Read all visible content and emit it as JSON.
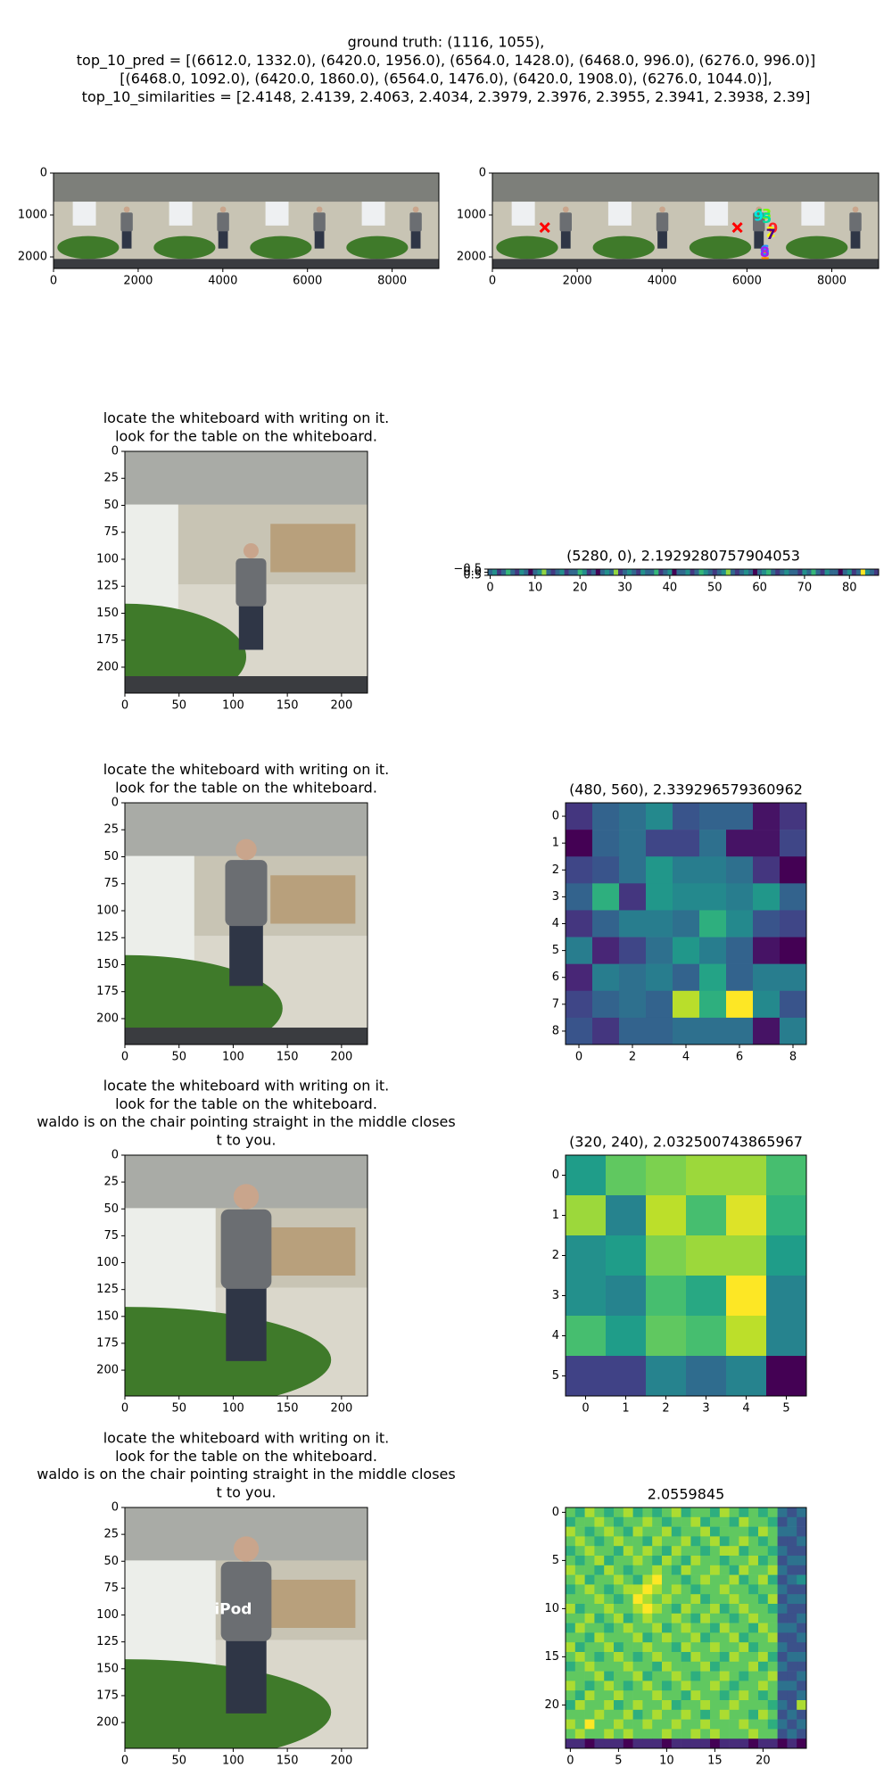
{
  "suptitle": [
    "ground truth: (1116, 1055),",
    "top_10_pred = [(6612.0, 1332.0), (6420.0, 1956.0), (6564.0, 1428.0), (6468.0, 996.0), (6276.0, 996.0)]",
    "[(6468.0, 1092.0), (6420.0, 1860.0), (6564.0, 1476.0), (6420.0, 1908.0), (6276.0, 1044.0)],",
    "top_10_similarities = [2.4148, 2.4139, 2.4063, 2.4034, 2.3979, 2.3976, 2.3955, 2.3941, 2.3938, 2.39]"
  ],
  "chart_data": [
    {
      "type": "image",
      "xlim": [
        0,
        9104
      ],
      "ylim": [
        2276,
        0
      ],
      "xticks": [
        0,
        2000,
        4000,
        6000,
        8000
      ],
      "yticks": [
        0,
        1000,
        2000
      ]
    },
    {
      "type": "image",
      "xlim": [
        0,
        9104
      ],
      "ylim": [
        2276,
        0
      ],
      "xticks": [
        0,
        2000,
        4000,
        6000,
        8000
      ],
      "yticks": [
        0,
        1000,
        2000
      ],
      "markers": {
        "x": [
          1235,
          5774
        ],
        "y": [
          1300,
          1300
        ],
        "color": "#ff0000"
      },
      "points": {
        "labels": [
          "0",
          "1",
          "2",
          "3",
          "4",
          "5",
          "6",
          "7",
          "8",
          "9"
        ],
        "x": [
          6612,
          6420,
          6564,
          6468,
          6276,
          6468,
          6420,
          6564,
          6420,
          6276
        ],
        "y": [
          1332,
          1956,
          1428,
          996,
          996,
          1092,
          1860,
          1476,
          1908,
          1044
        ],
        "colors": [
          "#ff2020",
          "#ff8c00",
          "#ffff00",
          "#7cfc00",
          "#00cc44",
          "#00e0a0",
          "#1e90ff",
          "#4b0082",
          "#a020f0",
          "#00e5e5"
        ]
      }
    },
    {
      "type": "image",
      "title_lines": [
        "locate the whiteboard with writing on it.",
        "look for the table on the whiteboard."
      ],
      "xlim": [
        0,
        224
      ],
      "ylim": [
        224,
        0
      ],
      "xticks": [
        0,
        50,
        100,
        150,
        200
      ],
      "yticks": [
        0,
        25,
        50,
        75,
        100,
        125,
        150,
        175,
        200
      ]
    },
    {
      "type": "heatmap",
      "title": "(5280, 0), 2.1929280757904053",
      "colormap": "viridis",
      "xlim": [
        -0.5,
        86.5
      ],
      "ylim": [
        0.5,
        -0.5
      ],
      "xticks": [
        0,
        10,
        20,
        30,
        40,
        50,
        60,
        70,
        80
      ],
      "yticks": [
        {
          "value": -0.5,
          "label": "−0.5"
        },
        {
          "value": 0,
          "label": "0.0"
        },
        {
          "value": 0.5,
          "label": "0.5"
        }
      ],
      "values": [
        [
          5,
          6,
          4,
          5,
          7,
          5,
          4,
          6,
          5,
          3,
          5,
          6,
          8,
          5,
          4,
          5,
          6,
          4,
          5,
          5,
          7,
          6,
          4,
          5,
          3,
          5,
          6,
          5,
          8,
          4,
          5,
          6,
          5,
          4,
          6,
          5,
          5,
          7,
          4,
          5,
          6,
          3,
          5,
          5,
          6,
          4,
          5,
          7,
          6,
          5,
          4,
          5,
          6,
          8,
          5,
          4,
          5,
          6,
          5,
          3,
          5,
          6,
          7,
          5,
          4,
          5,
          6,
          5,
          5,
          4,
          6,
          5,
          7,
          5,
          4,
          6,
          5,
          5,
          3,
          5,
          6,
          4,
          5,
          9,
          6,
          5,
          4
        ]
      ]
    },
    {
      "type": "image",
      "title_lines": [
        "locate the whiteboard with writing on it.",
        "look for the table on the whiteboard."
      ],
      "xlim": [
        0,
        224
      ],
      "ylim": [
        224,
        0
      ],
      "xticks": [
        0,
        50,
        100,
        150,
        200
      ],
      "yticks": [
        0,
        25,
        50,
        75,
        100,
        125,
        150,
        175,
        200
      ]
    },
    {
      "type": "heatmap",
      "title": "(480, 560), 2.339296579360962",
      "colormap": "viridis",
      "xlim": [
        -0.5,
        8.5
      ],
      "ylim": [
        8.5,
        -0.5
      ],
      "xticks": [
        0,
        2,
        4,
        6,
        8
      ],
      "yticks": [
        0,
        1,
        2,
        3,
        4,
        5,
        6,
        7,
        8
      ],
      "values": [
        [
          0.15,
          0.3,
          0.35,
          0.45,
          0.25,
          0.3,
          0.3,
          0.05,
          0.15
        ],
        [
          0.0,
          0.3,
          0.35,
          0.2,
          0.2,
          0.35,
          0.05,
          0.05,
          0.2
        ],
        [
          0.2,
          0.25,
          0.35,
          0.5,
          0.4,
          0.4,
          0.35,
          0.15,
          0.0
        ],
        [
          0.3,
          0.6,
          0.15,
          0.5,
          0.45,
          0.45,
          0.4,
          0.5,
          0.3
        ],
        [
          0.15,
          0.3,
          0.4,
          0.4,
          0.35,
          0.6,
          0.45,
          0.25,
          0.2
        ],
        [
          0.4,
          0.1,
          0.2,
          0.35,
          0.5,
          0.4,
          0.3,
          0.05,
          0.0
        ],
        [
          0.1,
          0.4,
          0.35,
          0.4,
          0.3,
          0.55,
          0.3,
          0.4,
          0.4
        ],
        [
          0.2,
          0.3,
          0.35,
          0.3,
          0.85,
          0.6,
          0.95,
          0.45,
          0.25
        ],
        [
          0.25,
          0.15,
          0.3,
          0.3,
          0.35,
          0.35,
          0.35,
          0.05,
          0.4
        ]
      ]
    },
    {
      "type": "image",
      "title_lines": [
        "locate the whiteboard with writing on it.",
        "look for the table on the whiteboard.",
        "waldo is on the chair pointing straight in the middle closes",
        "t to you."
      ],
      "xlim": [
        0,
        224
      ],
      "ylim": [
        224,
        0
      ],
      "xticks": [
        0,
        50,
        100,
        150,
        200
      ],
      "yticks": [
        0,
        25,
        50,
        75,
        100,
        125,
        150,
        175,
        200
      ]
    },
    {
      "type": "heatmap",
      "title": "(320, 240), 2.032500743865967",
      "colormap": "viridis",
      "xlim": [
        -0.5,
        5.5
      ],
      "ylim": [
        5.5,
        -0.5
      ],
      "xticks": [
        0,
        1,
        2,
        3,
        4,
        5
      ],
      "yticks": [
        0,
        1,
        2,
        3,
        4,
        5
      ],
      "values": [
        [
          0.55,
          0.75,
          0.8,
          0.85,
          0.85,
          0.7
        ],
        [
          0.85,
          0.45,
          0.9,
          0.7,
          0.95,
          0.65
        ],
        [
          0.5,
          0.55,
          0.8,
          0.85,
          0.85,
          0.55
        ],
        [
          0.5,
          0.45,
          0.7,
          0.6,
          1.0,
          0.45
        ],
        [
          0.7,
          0.55,
          0.75,
          0.7,
          0.9,
          0.45
        ],
        [
          0.2,
          0.2,
          0.45,
          0.35,
          0.45,
          0.0
        ]
      ]
    },
    {
      "type": "image",
      "title_lines": [
        "locate the whiteboard with writing on it.",
        "look for the table on the whiteboard.",
        "waldo is on the chair pointing straight in the middle closes",
        "t to you."
      ],
      "xlim": [
        0,
        224
      ],
      "ylim": [
        224,
        0
      ],
      "xticks": [
        0,
        50,
        100,
        150,
        200
      ],
      "yticks": [
        0,
        25,
        50,
        75,
        100,
        125,
        150,
        175,
        200
      ],
      "annotations": [
        {
          "text": "iPod",
          "x": 100,
          "y": 95
        }
      ]
    },
    {
      "type": "heatmap",
      "title": "2.0559845",
      "colormap": "viridis",
      "xlim": [
        -0.5,
        24.5
      ],
      "ylim": [
        24.5,
        -0.5
      ],
      "xticks": [
        0,
        5,
        10,
        15,
        20
      ],
      "yticks": [
        0,
        5,
        10,
        15,
        20
      ],
      "values": [
        [
          7,
          6,
          8,
          7,
          6,
          7,
          8,
          6,
          7,
          6,
          7,
          8,
          6,
          7,
          7,
          6,
          8,
          7,
          6,
          7,
          6,
          7,
          4,
          3,
          4
        ],
        [
          6,
          7,
          7,
          8,
          7,
          6,
          7,
          7,
          8,
          7,
          6,
          7,
          7,
          8,
          6,
          7,
          7,
          6,
          8,
          7,
          7,
          6,
          3,
          4,
          3
        ],
        [
          8,
          7,
          6,
          7,
          8,
          7,
          6,
          8,
          7,
          7,
          8,
          6,
          7,
          7,
          8,
          6,
          7,
          7,
          7,
          6,
          8,
          7,
          4,
          4,
          3
        ],
        [
          7,
          8,
          7,
          6,
          7,
          8,
          7,
          7,
          6,
          8,
          7,
          7,
          8,
          6,
          7,
          8,
          6,
          7,
          8,
          7,
          6,
          7,
          3,
          3,
          4
        ],
        [
          6,
          7,
          8,
          7,
          7,
          6,
          8,
          7,
          8,
          7,
          6,
          8,
          7,
          7,
          6,
          7,
          8,
          8,
          6,
          7,
          7,
          6,
          4,
          3,
          3
        ],
        [
          7,
          6,
          7,
          8,
          6,
          7,
          7,
          8,
          7,
          6,
          8,
          7,
          6,
          8,
          7,
          7,
          6,
          7,
          7,
          8,
          6,
          7,
          3,
          4,
          4
        ],
        [
          8,
          7,
          7,
          6,
          8,
          7,
          6,
          7,
          7,
          8,
          7,
          6,
          8,
          7,
          7,
          8,
          7,
          6,
          8,
          7,
          7,
          8,
          4,
          3,
          3
        ],
        [
          7,
          8,
          6,
          7,
          7,
          8,
          7,
          6,
          8,
          9,
          7,
          7,
          6,
          7,
          8,
          7,
          7,
          8,
          6,
          7,
          8,
          6,
          3,
          4,
          5
        ],
        [
          6,
          7,
          8,
          7,
          6,
          7,
          8,
          8,
          9,
          8,
          7,
          8,
          7,
          6,
          7,
          7,
          8,
          7,
          7,
          6,
          7,
          7,
          4,
          3,
          3
        ],
        [
          7,
          7,
          7,
          8,
          7,
          6,
          7,
          9,
          8,
          7,
          8,
          7,
          7,
          8,
          6,
          7,
          7,
          8,
          7,
          7,
          6,
          8,
          3,
          4,
          4
        ],
        [
          8,
          6,
          7,
          7,
          8,
          7,
          7,
          8,
          9,
          8,
          7,
          6,
          8,
          7,
          7,
          8,
          6,
          7,
          8,
          7,
          7,
          6,
          4,
          3,
          3
        ],
        [
          7,
          7,
          8,
          6,
          7,
          8,
          6,
          7,
          8,
          7,
          7,
          8,
          7,
          6,
          8,
          7,
          7,
          6,
          7,
          8,
          7,
          7,
          3,
          3,
          4
        ],
        [
          6,
          8,
          7,
          7,
          6,
          7,
          8,
          7,
          7,
          8,
          6,
          7,
          8,
          7,
          7,
          6,
          8,
          7,
          7,
          6,
          8,
          7,
          4,
          4,
          3
        ],
        [
          7,
          7,
          6,
          8,
          7,
          7,
          7,
          8,
          6,
          7,
          8,
          7,
          7,
          8,
          6,
          7,
          7,
          8,
          6,
          7,
          7,
          8,
          3,
          3,
          4
        ],
        [
          8,
          6,
          7,
          7,
          8,
          6,
          7,
          7,
          8,
          7,
          7,
          6,
          8,
          7,
          7,
          8,
          7,
          7,
          8,
          6,
          7,
          7,
          4,
          3,
          3
        ],
        [
          7,
          8,
          7,
          6,
          7,
          8,
          7,
          6,
          7,
          8,
          7,
          7,
          6,
          8,
          7,
          7,
          6,
          8,
          7,
          7,
          8,
          6,
          3,
          4,
          4
        ],
        [
          6,
          7,
          8,
          7,
          7,
          7,
          8,
          7,
          7,
          6,
          8,
          7,
          7,
          7,
          8,
          6,
          7,
          7,
          7,
          8,
          6,
          7,
          4,
          3,
          3
        ],
        [
          7,
          7,
          7,
          8,
          6,
          7,
          7,
          8,
          6,
          7,
          7,
          8,
          7,
          6,
          7,
          7,
          8,
          7,
          6,
          7,
          7,
          8,
          3,
          3,
          4
        ],
        [
          8,
          7,
          6,
          7,
          8,
          7,
          6,
          7,
          8,
          7,
          6,
          7,
          8,
          7,
          7,
          8,
          7,
          6,
          7,
          7,
          8,
          7,
          4,
          4,
          3
        ],
        [
          7,
          6,
          8,
          7,
          7,
          8,
          7,
          7,
          7,
          8,
          7,
          7,
          6,
          8,
          7,
          7,
          6,
          7,
          8,
          7,
          6,
          7,
          3,
          3,
          4
        ],
        [
          6,
          8,
          7,
          7,
          8,
          6,
          7,
          8,
          7,
          7,
          8,
          6,
          7,
          7,
          8,
          7,
          7,
          8,
          7,
          7,
          7,
          6,
          4,
          3,
          8
        ],
        [
          7,
          7,
          7,
          8,
          7,
          7,
          8,
          6,
          7,
          8,
          7,
          7,
          8,
          7,
          6,
          7,
          8,
          7,
          7,
          6,
          8,
          7,
          3,
          4,
          3
        ],
        [
          8,
          7,
          9,
          7,
          7,
          8,
          7,
          7,
          8,
          7,
          7,
          8,
          7,
          7,
          8,
          7,
          7,
          7,
          8,
          7,
          7,
          6,
          4,
          3,
          4
        ],
        [
          7,
          8,
          7,
          7,
          8,
          7,
          8,
          7,
          7,
          7,
          8,
          7,
          7,
          8,
          7,
          8,
          7,
          7,
          7,
          8,
          7,
          7,
          3,
          4,
          3
        ],
        [
          2,
          2,
          1,
          2,
          2,
          2,
          1,
          2,
          2,
          2,
          1,
          2,
          2,
          2,
          2,
          1,
          2,
          2,
          2,
          1,
          2,
          2,
          1,
          2,
          1
        ]
      ]
    }
  ]
}
